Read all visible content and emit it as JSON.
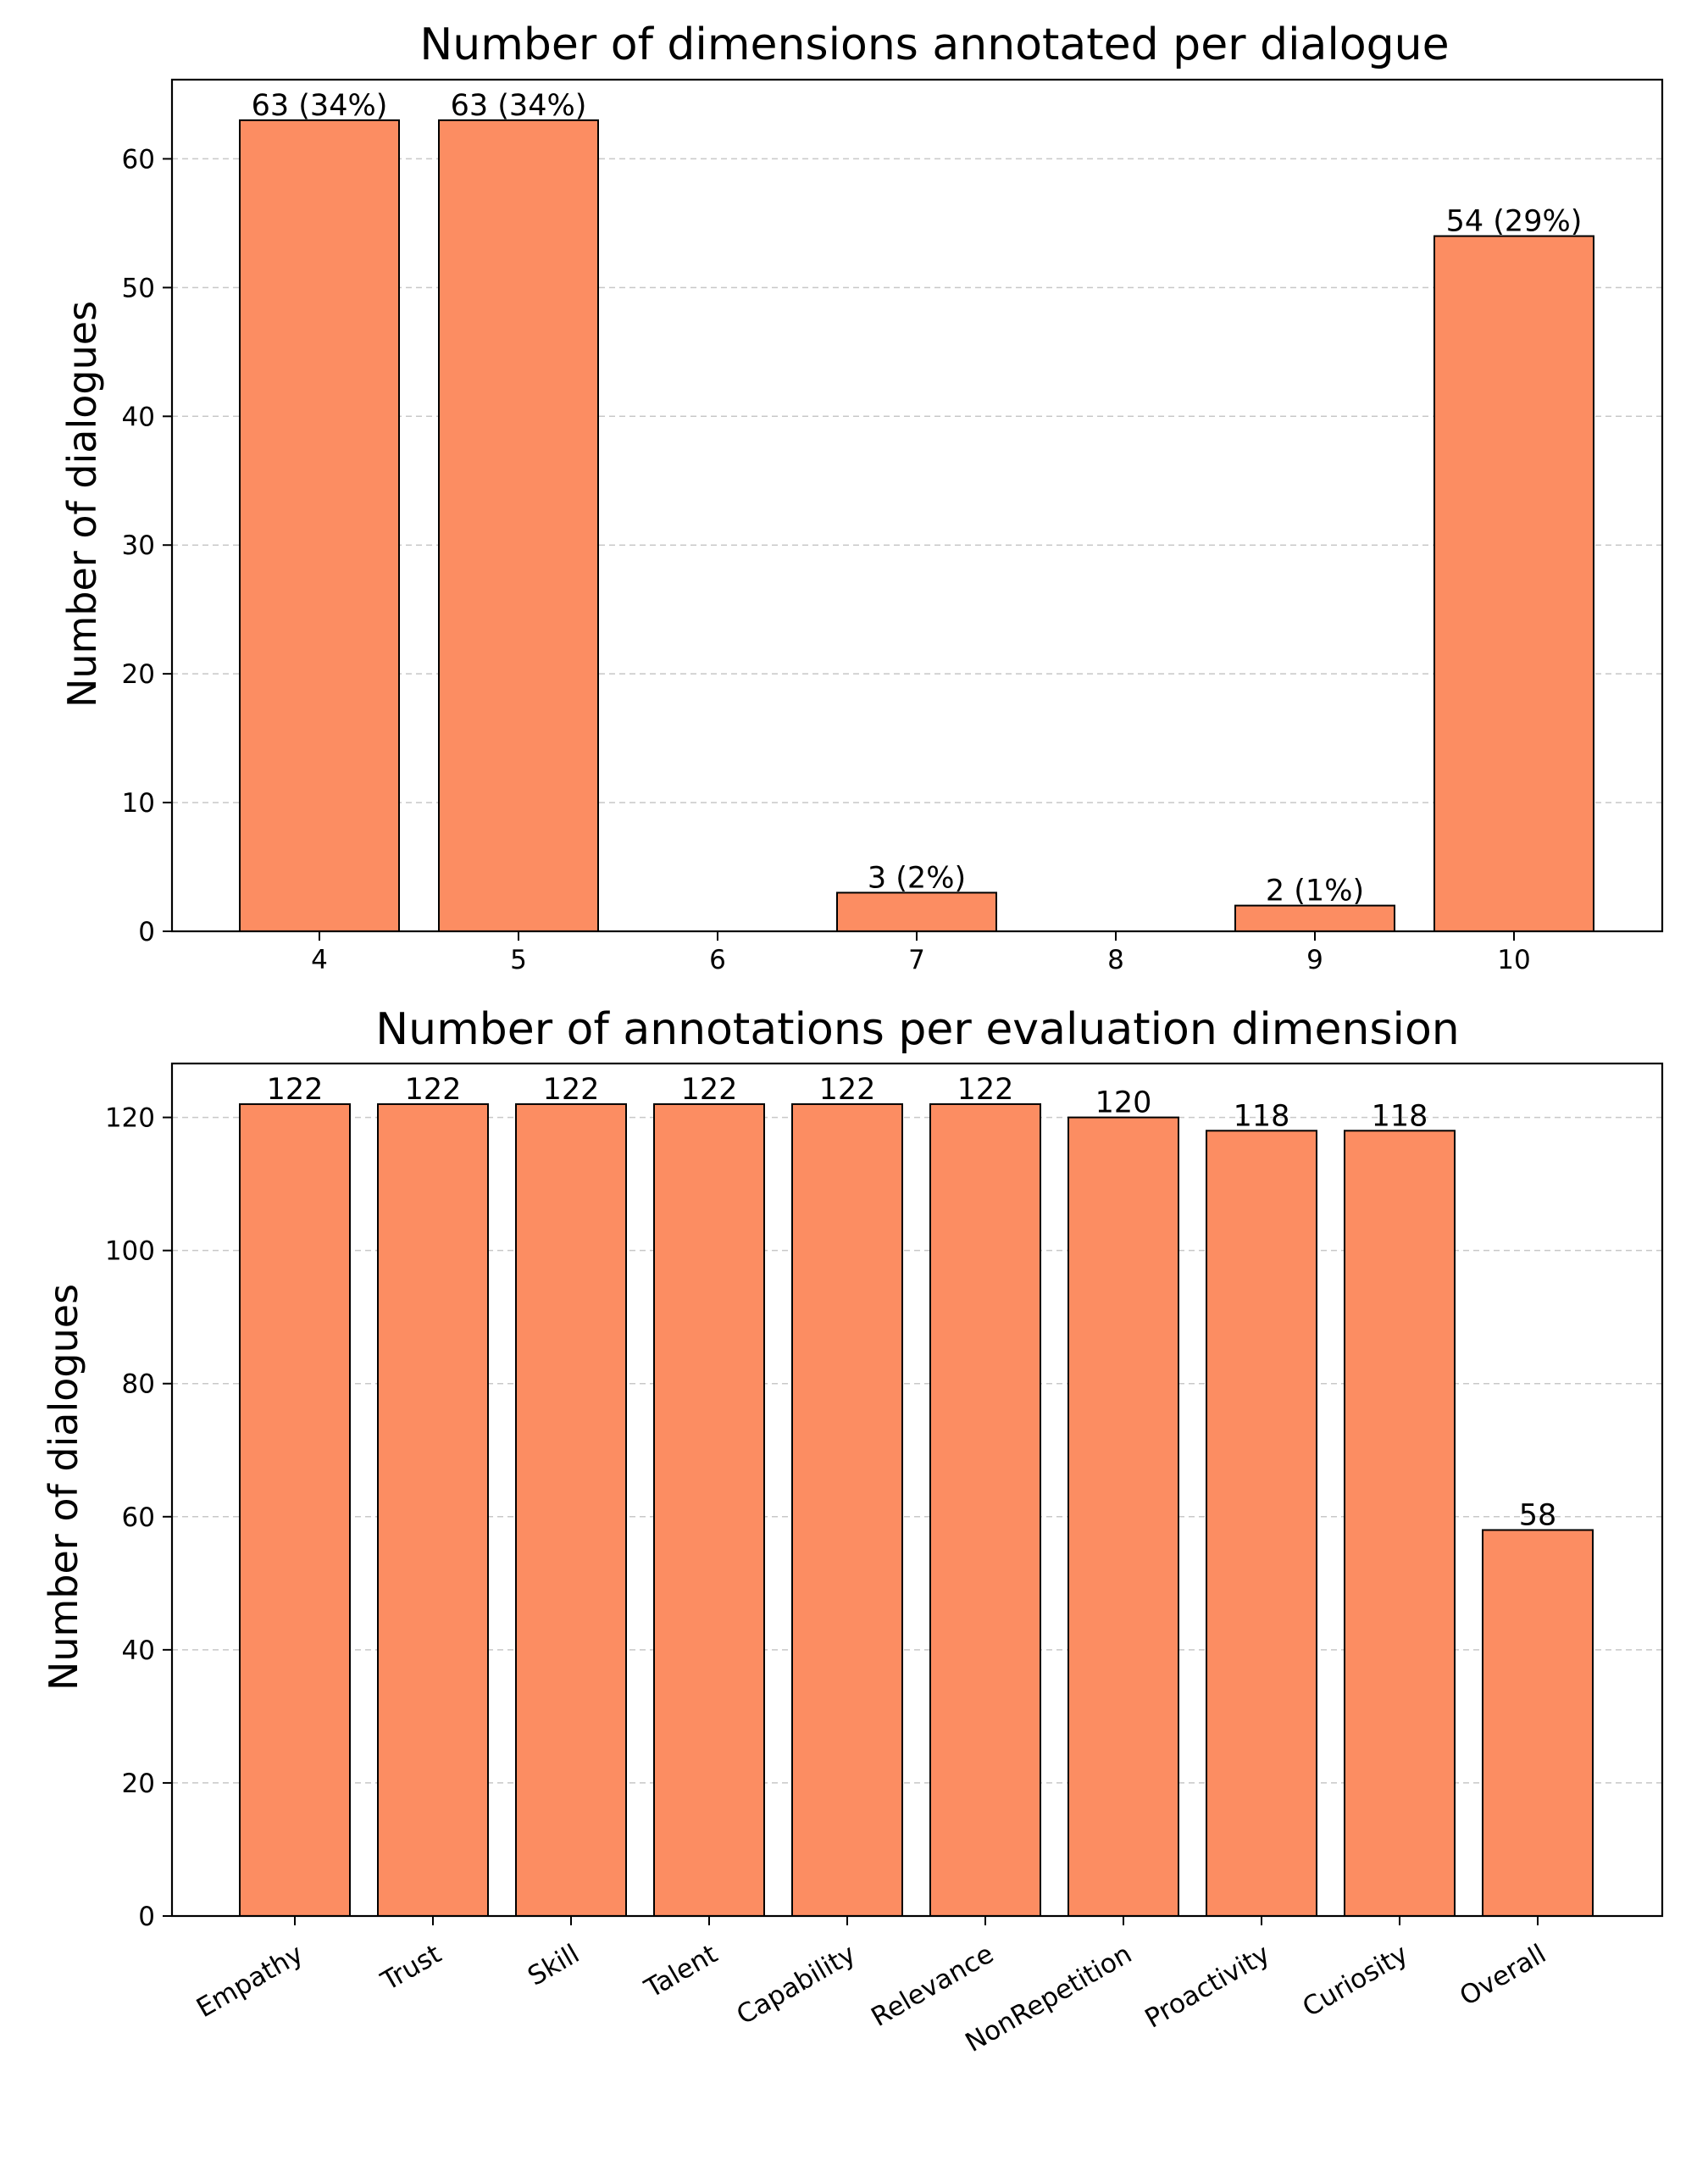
{
  "figure": {
    "bar_color": "#FC8D62",
    "edge_color": "#000000",
    "grid_color": "#c8c8c8"
  },
  "chart_data": [
    {
      "type": "bar",
      "title": "Number of dimensions annotated per dialogue",
      "xlabel": "",
      "ylabel": "Number of dialogues",
      "categories": [
        "4",
        "5",
        "6",
        "7",
        "8",
        "9",
        "10"
      ],
      "values": [
        63,
        63,
        0,
        3,
        0,
        2,
        54
      ],
      "bar_labels": [
        "63 (34%)",
        "63 (34%)",
        "",
        "3 (2%)",
        "",
        "2 (1%)",
        "54 (29%)"
      ],
      "ylim": [
        0,
        66.15
      ],
      "yticks": [
        "0",
        "10",
        "20",
        "30",
        "40",
        "50",
        "60"
      ],
      "grid": "y-dashed",
      "legend": "none",
      "xtick_rotation": 0
    },
    {
      "type": "bar",
      "title": "Number of annotations per evaluation dimension",
      "xlabel": "",
      "ylabel": "Number of dialogues",
      "categories": [
        "Empathy",
        "Trust",
        "Skill",
        "Talent",
        "Capability",
        "Relevance",
        "NonRepetition",
        "Proactivity",
        "Curiosity",
        "Overall"
      ],
      "values": [
        122,
        122,
        122,
        122,
        122,
        122,
        120,
        118,
        118,
        58
      ],
      "bar_labels": [
        "122",
        "122",
        "122",
        "122",
        "122",
        "122",
        "120",
        "118",
        "118",
        "58"
      ],
      "ylim": [
        0,
        128.1
      ],
      "yticks": [
        "0",
        "20",
        "40",
        "60",
        "80",
        "100",
        "120"
      ],
      "grid": "y-dashed",
      "legend": "none",
      "xtick_rotation": -30
    }
  ]
}
